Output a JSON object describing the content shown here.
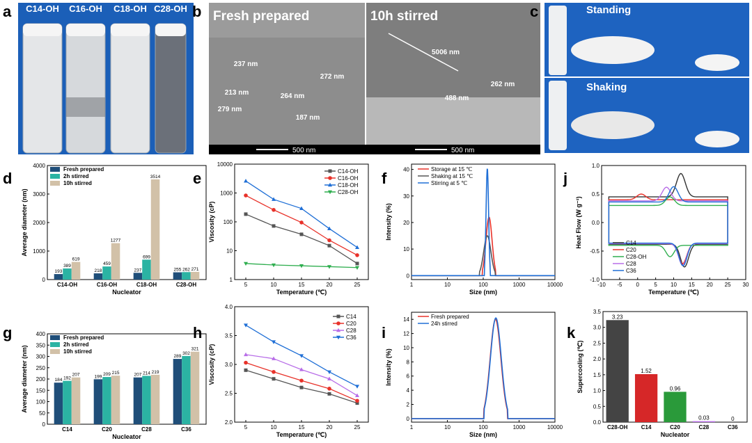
{
  "panel_letters": {
    "a": "a",
    "b": "b",
    "c": "c",
    "d": "d",
    "e": "e",
    "f": "f",
    "j": "j",
    "g": "g",
    "h": "h",
    "i": "i",
    "k": "k"
  },
  "photos": {
    "a_labels": [
      "C14-OH",
      "C16-OH",
      "C18-OH",
      "C28-OH"
    ],
    "b_left": "Fresh prepared",
    "b_right": "10h stirred",
    "b_scale": "500 nm",
    "b_measures_left": [
      "237 nm",
      "272 nm",
      "213 nm",
      "264 nm",
      "279 nm",
      "187 nm"
    ],
    "b_measures_right": [
      "5006 nm",
      "262 nm",
      "488 nm"
    ],
    "c_top": "Standing",
    "c_bottom": "Shaking"
  },
  "chart_data": [
    {
      "id": "d",
      "type": "bar",
      "xlabel": "Nucleator",
      "ylabel": "Average diameter (nm)",
      "categories": [
        "C14-OH",
        "C16-OH",
        "C18-OH",
        "C28-OH"
      ],
      "ylim": [
        0,
        4000
      ],
      "yticks": [
        0,
        1000,
        2000,
        3000,
        4000
      ],
      "series": [
        {
          "name": "Fresh prepared",
          "color": "#1f4e79",
          "values": [
            193,
            218,
            237,
            255
          ]
        },
        {
          "name": "2h stirred",
          "color": "#2bb3a3",
          "values": [
            389,
            459,
            699,
            262
          ]
        },
        {
          "name": "10h stirred",
          "color": "#d2c1a8",
          "values": [
            619,
            1277,
            3514,
            271
          ]
        }
      ]
    },
    {
      "id": "e",
      "type": "line",
      "yscale": "log",
      "xlabel": "Temperature (℃)",
      "ylabel": "Viscosity (cP)",
      "x": [
        5,
        10,
        15,
        20,
        25
      ],
      "xlim": [
        3,
        27
      ],
      "ylim": [
        1,
        10000
      ],
      "yticks": [
        1,
        10,
        100,
        1000,
        10000
      ],
      "series": [
        {
          "name": "C14-OH",
          "color": "#555555",
          "marker": "square",
          "values": [
            185,
            72,
            37,
            15,
            3.6
          ]
        },
        {
          "name": "C16-OH",
          "color": "#e8322a",
          "marker": "circle",
          "values": [
            820,
            260,
            95,
            23,
            7
          ]
        },
        {
          "name": "C18-OH",
          "color": "#1f6fd6",
          "marker": "triangle",
          "values": [
            2600,
            600,
            290,
            58,
            13
          ]
        },
        {
          "name": "C28-OH",
          "color": "#2fae4f",
          "marker": "down",
          "values": [
            3.6,
            3.2,
            3.0,
            2.8,
            2.6
          ]
        }
      ]
    },
    {
      "id": "f",
      "type": "line",
      "xscale": "log",
      "xlabel": "Size (nm)",
      "ylabel": "Intensity (%)",
      "xlim": [
        1,
        10000
      ],
      "ylim": [
        -1.5,
        42
      ],
      "yticks": [
        0,
        10,
        20,
        30,
        40
      ],
      "xticks": [
        1,
        10,
        100,
        1000,
        10000
      ],
      "series": [
        {
          "name": "Storage at 15 ℃",
          "color": "#e8322a",
          "center": 145,
          "peak": 22,
          "width": 0.085
        },
        {
          "name": "Shaking at 15 ℃",
          "color": "#555555",
          "center": 130,
          "peak": 15,
          "width": 0.1
        },
        {
          "name": "Stirring at 5 ℃",
          "color": "#1f6fd6",
          "center": 130,
          "peak": 40.5,
          "width": 0.035
        }
      ]
    },
    {
      "id": "j",
      "type": "line",
      "xlabel": "Temperature (℃)",
      "ylabel": "Heat Flow (W g⁻¹)",
      "xlim": [
        -10,
        30
      ],
      "ylim": [
        -1.0,
        1.0
      ],
      "xticks": [
        -10,
        -5,
        0,
        5,
        10,
        15,
        20,
        25,
        30
      ],
      "yticks": [
        -1.0,
        -0.5,
        0.0,
        0.5,
        1.0
      ],
      "series": [
        {
          "name": "C14",
          "color": "#333333",
          "heat_base": 0.45,
          "cool_base": -0.38,
          "heat_peak": [
            12,
            0.86
          ],
          "cool_peak": [
            13,
            -0.78
          ]
        },
        {
          "name": "C20",
          "color": "#e8322a",
          "heat_base": 0.4,
          "cool_base": -0.37,
          "heat_peak": [
            1,
            0.5
          ],
          "cool_peak": [
            12.5,
            -0.72
          ]
        },
        {
          "name": "C28-OH",
          "color": "#2fae4f",
          "heat_base": 0.3,
          "cool_base": -0.4,
          "heat_peak": [
            9,
            0.45
          ],
          "cool_peak": [
            9,
            -0.6
          ]
        },
        {
          "name": "C28",
          "color": "#b86ee8",
          "heat_base": 0.38,
          "cool_base": -0.37,
          "heat_peak": [
            8,
            0.62
          ],
          "cool_peak": [
            12.5,
            -0.75
          ]
        },
        {
          "name": "C36",
          "color": "#1f6fd6",
          "heat_base": 0.36,
          "cool_base": -0.36,
          "heat_peak": [
            10,
            0.63
          ],
          "cool_peak": [
            12.6,
            -0.76
          ]
        }
      ]
    },
    {
      "id": "g",
      "type": "bar",
      "xlabel": "Nucleator",
      "ylabel": "Average diameter (nm)",
      "categories": [
        "C14",
        "C20",
        "C28",
        "C36"
      ],
      "ylim": [
        0,
        400
      ],
      "yticks": [
        0,
        50,
        100,
        150,
        200,
        250,
        300,
        350,
        400
      ],
      "series": [
        {
          "name": "Fresh prepared",
          "color": "#1f4e79",
          "values": [
            184,
            199,
            207,
            289
          ]
        },
        {
          "name": "2h stirred",
          "color": "#2bb3a3",
          "values": [
            192,
            209,
            214,
            302
          ]
        },
        {
          "name": "10h stirred",
          "color": "#d2c1a8",
          "values": [
            207,
            215,
            219,
            321
          ]
        }
      ]
    },
    {
      "id": "h",
      "type": "line",
      "xlabel": "Temperature (℃)",
      "ylabel": "Viscosity (cP)",
      "x": [
        5,
        10,
        15,
        20,
        25
      ],
      "xlim": [
        3,
        27
      ],
      "ylim": [
        2.0,
        4.0
      ],
      "yticks": [
        2.0,
        2.5,
        3.0,
        3.5,
        4.0
      ],
      "series": [
        {
          "name": "C14",
          "color": "#555555",
          "marker": "square",
          "values": [
            2.9,
            2.75,
            2.6,
            2.49,
            2.33
          ]
        },
        {
          "name": "C20",
          "color": "#e8322a",
          "marker": "circle",
          "values": [
            3.03,
            2.87,
            2.72,
            2.58,
            2.37
          ]
        },
        {
          "name": "C28",
          "color": "#b86ee8",
          "marker": "triangle",
          "values": [
            3.17,
            3.1,
            2.91,
            2.75,
            2.46
          ]
        },
        {
          "name": "C36",
          "color": "#1f6fd6",
          "marker": "down",
          "values": [
            3.68,
            3.39,
            3.15,
            2.87,
            2.62
          ]
        }
      ]
    },
    {
      "id": "i",
      "type": "line",
      "xscale": "log",
      "xlabel": "Size (nm)",
      "ylabel": "Intensity (%)",
      "xlim": [
        1,
        10000
      ],
      "ylim": [
        -0.5,
        15
      ],
      "yticks": [
        0,
        2,
        4,
        6,
        8,
        10,
        12,
        14
      ],
      "xticks": [
        1,
        10,
        100,
        1000,
        10000
      ],
      "series": [
        {
          "name": "Fresh prepared",
          "color": "#e8322a",
          "center": 220,
          "peak": 14.0,
          "width": 0.15
        },
        {
          "name": "24h stirred",
          "color": "#1f6fd6",
          "center": 225,
          "peak": 14.2,
          "width": 0.15
        }
      ]
    },
    {
      "id": "k",
      "type": "bar",
      "xlabel": "Nucleator",
      "ylabel": "Supercooling (℃)",
      "categories": [
        "C28-OH",
        "C14",
        "C20",
        "C28",
        "C36"
      ],
      "values": [
        3.23,
        1.52,
        0.96,
        0.03,
        0
      ],
      "labels": [
        "3.23",
        "1.52",
        "0.96",
        "0.03",
        "0"
      ],
      "colors": [
        "#444444",
        "#d62728",
        "#2a9a3a",
        "#b86ee8",
        "#1f6fd6"
      ],
      "ylim": [
        0,
        3.5
      ],
      "yticks": [
        0.0,
        0.5,
        1.0,
        1.5,
        2.0,
        2.5,
        3.0,
        3.5
      ]
    }
  ]
}
